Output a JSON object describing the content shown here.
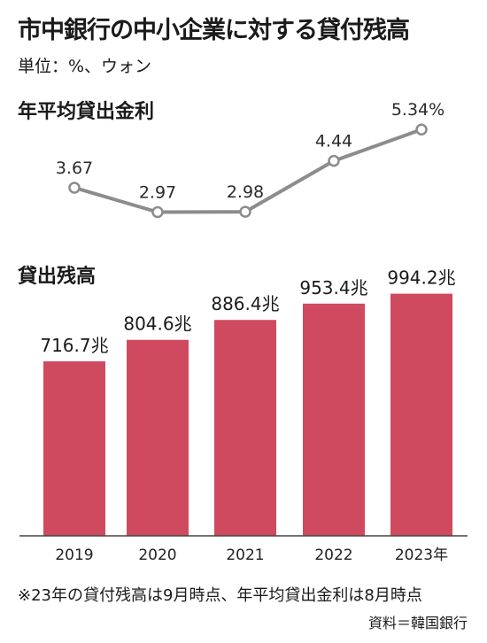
{
  "title": "市中銀行の中小企業に対する貸付残高",
  "unit": "単位：%、ウォン",
  "footnote": "※23年の貸付残高は9月時点、年平均貸出金利は8月時点",
  "source": "資料＝韓国銀行",
  "colors": {
    "bar": "#cf4a5f",
    "line": "#8c8c8c",
    "axis": "#444444"
  },
  "chart_data": [
    {
      "type": "line",
      "title": "年平均貸出金利",
      "categories": [
        "2019",
        "2020",
        "2021",
        "2022",
        "2023年"
      ],
      "values": [
        3.67,
        2.97,
        2.98,
        4.44,
        5.34
      ],
      "value_labels": [
        "3.67",
        "2.97",
        "2.98",
        "4.44",
        "5.34%"
      ],
      "ylim": [
        2.5,
        5.6
      ],
      "grid": false
    },
    {
      "type": "bar",
      "title": "貸出残高",
      "categories": [
        "2019",
        "2020",
        "2021",
        "2022",
        "2023年"
      ],
      "values": [
        716.7,
        804.6,
        886.4,
        953.4,
        994.2
      ],
      "value_labels": [
        "716.7兆",
        "804.6兆",
        "886.4兆",
        "953.4兆",
        "994.2兆"
      ],
      "ylim": [
        0,
        1000
      ],
      "grid": false
    }
  ]
}
